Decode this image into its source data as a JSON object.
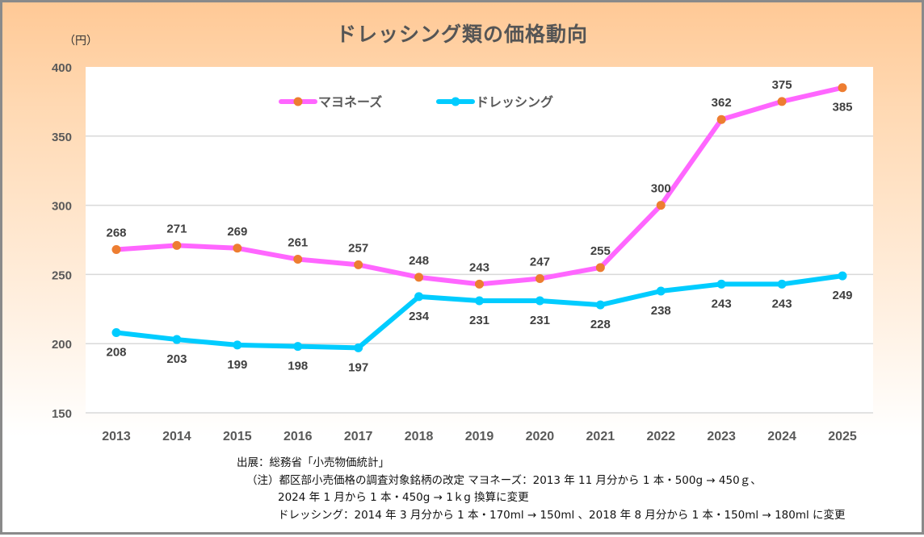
{
  "chart_data": {
    "type": "line",
    "title": "ドレッシング類の価格動向",
    "xlabel": "",
    "ylabel": "（円）",
    "ylim": [
      150,
      400
    ],
    "yticks": [
      150,
      200,
      250,
      300,
      350,
      400
    ],
    "grid": true,
    "legend_position": "top-center",
    "categories": [
      "2013",
      "2014",
      "2015",
      "2016",
      "2017",
      "2018",
      "2019",
      "2020",
      "2021",
      "2022",
      "2023",
      "2024",
      "2025"
    ],
    "series": [
      {
        "name": "マヨネーズ",
        "line_color": "#ff66ff",
        "marker_color": "#ed7d31",
        "label_position": [
          "above",
          "above",
          "above",
          "above",
          "above",
          "above",
          "above",
          "above",
          "above",
          "above",
          "above",
          "above",
          "below"
        ],
        "values": [
          268,
          271,
          269,
          261,
          257,
          248,
          243,
          247,
          255,
          300,
          362,
          375,
          385
        ]
      },
      {
        "name": "ドレッシング",
        "line_color": "#00ccff",
        "marker_color": "#00ccff",
        "label_position": [
          "below",
          "below",
          "below",
          "below",
          "below",
          "below",
          "below",
          "below",
          "below",
          "below",
          "below",
          "below",
          "below"
        ],
        "values": [
          208,
          203,
          199,
          198,
          197,
          234,
          231,
          231,
          228,
          238,
          243,
          243,
          249
        ]
      }
    ]
  },
  "notes": {
    "source": "出展：総務省「小売物価統計」",
    "note_line1": "（注）都区部小売価格の調査対象銘柄の改定 マヨネーズ：2013 年 11 月分から 1 本・500g → 450ｇ、",
    "note_line2": "2024 年 1 月から 1 本・450g → 1ｋg 換算に変更",
    "note_line3": "ドレッシング：2014 年 3 月分から 1 本・170ml → 150ml 、2018 年 8 月分から 1 本・150ml → 180ml に変更"
  }
}
